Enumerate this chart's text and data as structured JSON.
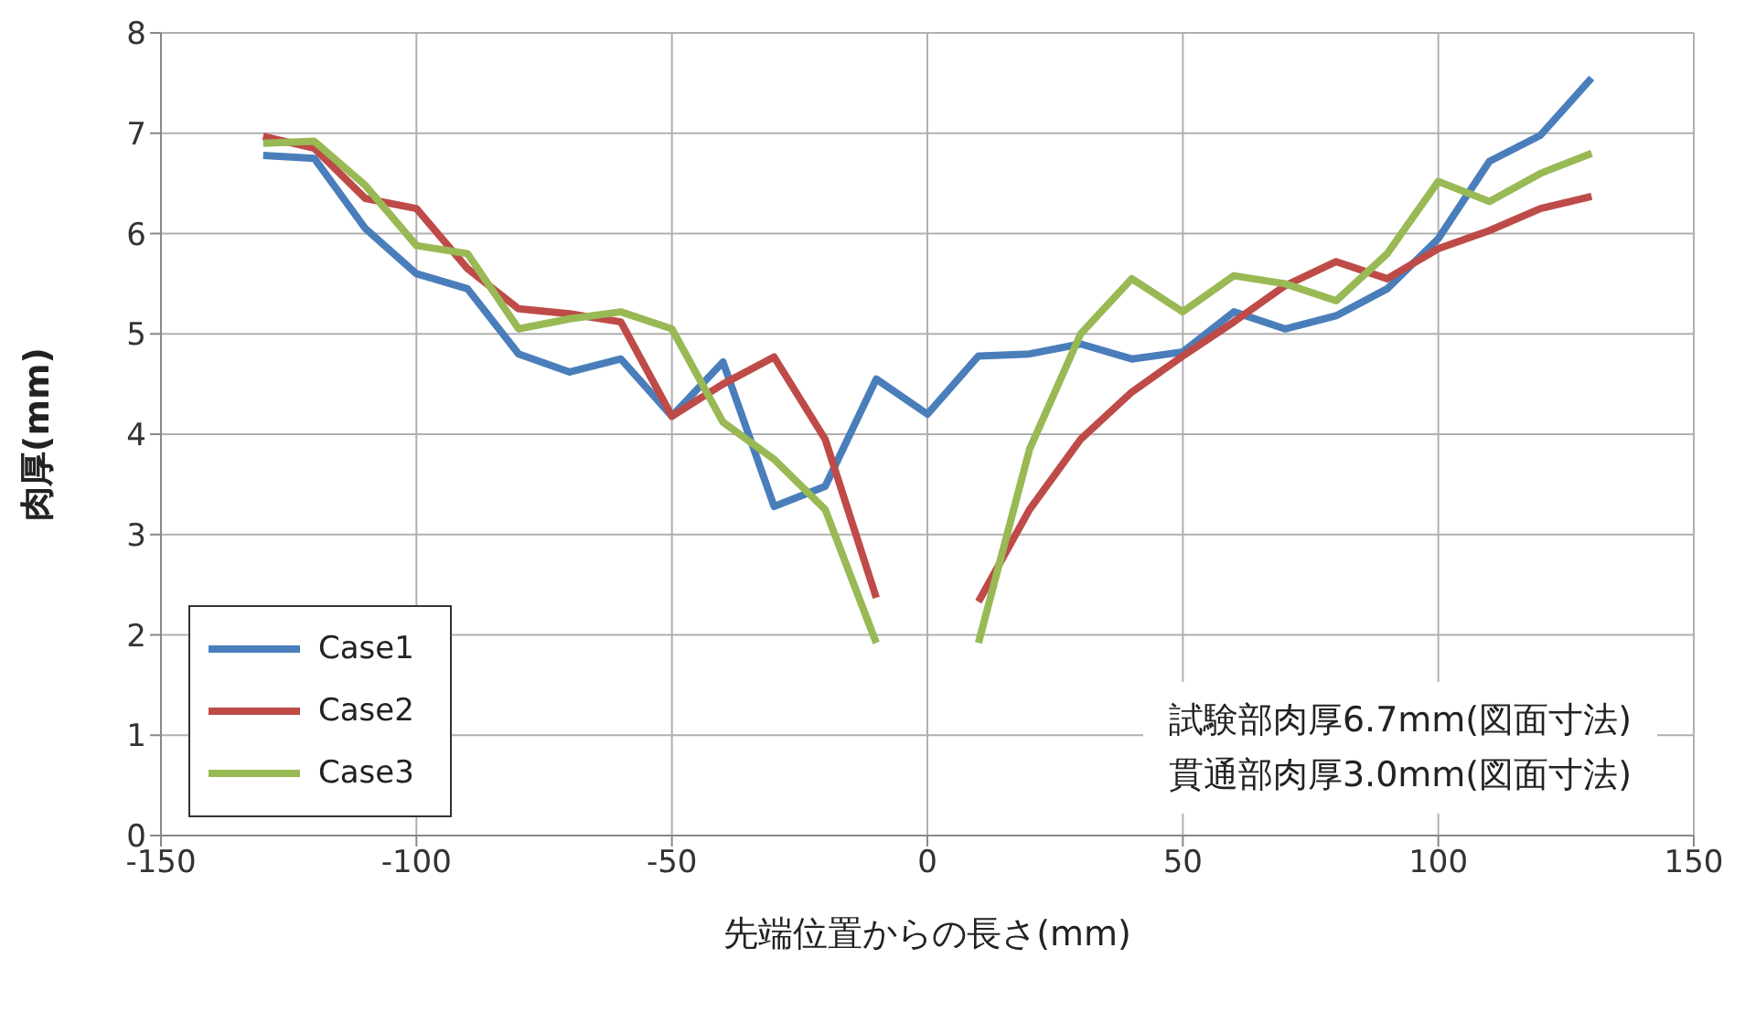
{
  "chart_data": {
    "type": "line",
    "xlabel": "先端位置からの長さ(mm)",
    "ylabel": "肉厚(mm)",
    "x": [
      -130,
      -120,
      -110,
      -100,
      -90,
      -80,
      -70,
      -60,
      -50,
      -40,
      -30,
      -20,
      -10,
      0,
      10,
      20,
      30,
      40,
      50,
      60,
      70,
      80,
      90,
      100,
      110,
      120,
      130
    ],
    "series": [
      {
        "name": "Case1",
        "color": "#4a7ebb",
        "values": [
          6.78,
          6.75,
          6.05,
          5.6,
          5.45,
          4.8,
          4.62,
          4.75,
          4.18,
          4.72,
          3.28,
          3.48,
          4.55,
          4.2,
          4.78,
          4.8,
          4.9,
          4.75,
          4.82,
          5.22,
          5.05,
          5.18,
          5.45,
          5.95,
          6.72,
          6.98,
          7.55
        ]
      },
      {
        "name": "Case2",
        "color": "#be4b48",
        "values": [
          6.97,
          6.85,
          6.35,
          6.25,
          5.65,
          5.25,
          5.2,
          5.12,
          4.18,
          4.5,
          4.77,
          3.95,
          2.37,
          null,
          2.33,
          3.25,
          3.95,
          4.42,
          4.78,
          5.12,
          5.48,
          5.72,
          5.55,
          5.85,
          6.03,
          6.25,
          6.37
        ]
      },
      {
        "name": "Case3",
        "color": "#98b954",
        "values": [
          6.9,
          6.92,
          6.48,
          5.88,
          5.8,
          5.05,
          5.15,
          5.22,
          5.05,
          4.12,
          3.75,
          3.25,
          1.92,
          null,
          1.92,
          3.85,
          5.0,
          5.55,
          5.22,
          5.58,
          5.5,
          5.33,
          5.8,
          6.52,
          6.32,
          6.6,
          6.8
        ]
      }
    ],
    "xlim": [
      -150,
      150
    ],
    "xticks": [
      -150,
      -100,
      -50,
      0,
      50,
      100,
      150
    ],
    "ylim": [
      0,
      8
    ],
    "yticks": [
      0,
      1,
      2,
      3,
      4,
      5,
      6,
      7,
      8
    ],
    "grid": true,
    "legend": "bottom left",
    "annotations": [
      "試験部肉厚6.7mm(図面寸法)",
      "貫通部肉厚3.0mm(図面寸法)"
    ]
  }
}
